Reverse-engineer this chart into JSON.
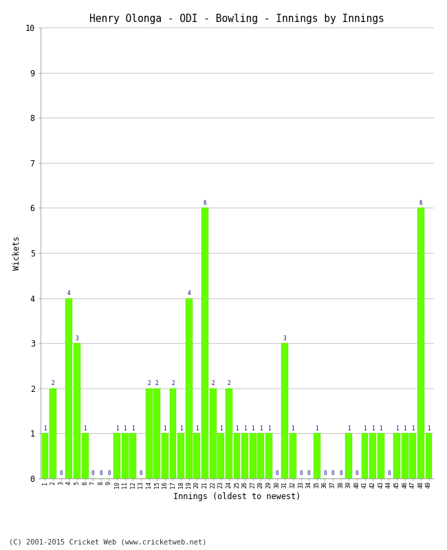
{
  "title": "Henry Olonga - ODI - Bowling - Innings by Innings",
  "xlabel": "Innings (oldest to newest)",
  "ylabel": "Wickets",
  "bar_color": "#66ff00",
  "bar_edge_color": "#55dd00",
  "label_color": "#000080",
  "background_color": "#ffffff",
  "grid_color": "#cccccc",
  "ylim": [
    0,
    10
  ],
  "yticks": [
    0,
    1,
    2,
    3,
    4,
    5,
    6,
    7,
    8,
    9,
    10
  ],
  "footer": "(C) 2001-2015 Cricket Web (www.cricketweb.net)",
  "innings_labels": [
    "1",
    "2",
    "3",
    "4",
    "5",
    "6",
    "7",
    "8",
    "9",
    "10",
    "11",
    "12",
    "13",
    "14",
    "15",
    "16",
    "17",
    "18",
    "19",
    "20",
    "21",
    "22",
    "23",
    "24",
    "25",
    "26",
    "27",
    "28",
    "29",
    "30",
    "31",
    "32",
    "33",
    "34",
    "35",
    "36",
    "37",
    "38",
    "39",
    "40",
    "41",
    "42",
    "43",
    "44",
    "45",
    "46",
    "47",
    "48",
    "49"
  ],
  "wickets": [
    1,
    2,
    0,
    4,
    3,
    1,
    0,
    0,
    0,
    1,
    1,
    1,
    0,
    2,
    2,
    1,
    2,
    1,
    4,
    1,
    6,
    2,
    1,
    2,
    1,
    1,
    1,
    1,
    1,
    0,
    3,
    1,
    0,
    0,
    1,
    0,
    0,
    0,
    1,
    0,
    1,
    1,
    1,
    0,
    1,
    1,
    1,
    6,
    1
  ]
}
